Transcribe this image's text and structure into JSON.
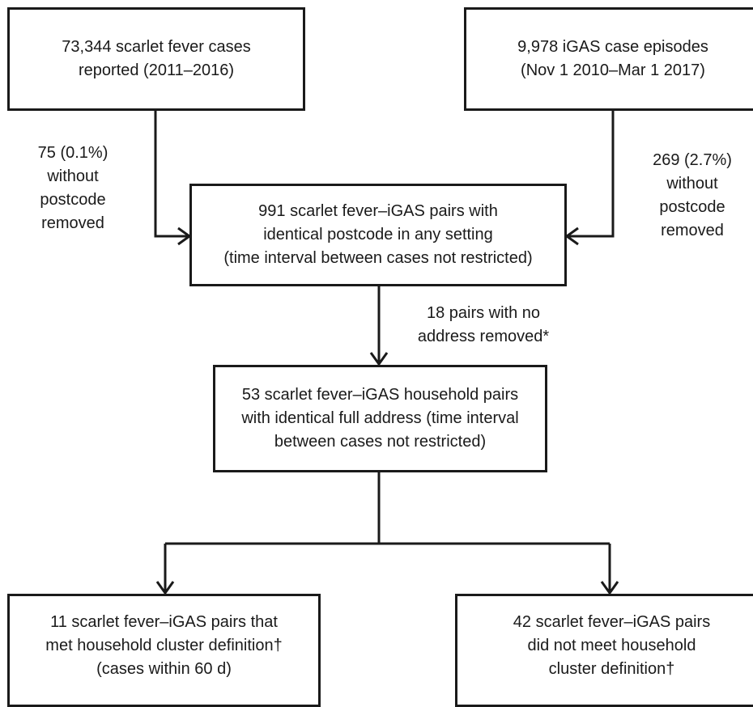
{
  "boxes": {
    "scarlet_fever": {
      "lines": [
        "73,344 scarlet fever cases",
        "reported (2011–2016)"
      ]
    },
    "igas": {
      "lines": [
        "9,978 iGAS  case episodes",
        "(Nov 1 2010–Mar 1 2017)"
      ]
    },
    "postcode_pairs": {
      "lines": [
        "991 scarlet fever–iGAS pairs with",
        "identical postcode in any setting",
        "(time interval between cases not restricted)"
      ]
    },
    "household_pairs": {
      "lines": [
        "53 scarlet fever–iGAS household pairs",
        "with identical full address (time interval",
        "between cases not restricted)"
      ]
    },
    "cluster_met": {
      "lines": [
        "11 scarlet fever–iGAS pairs that",
        "met household cluster definition†",
        "(cases within 60 d)"
      ]
    },
    "cluster_not_met": {
      "lines": [
        "42 scarlet fever–iGAS pairs",
        "did not meet household",
        "cluster definition†"
      ]
    }
  },
  "notes": {
    "scarlet_removed": {
      "lines": [
        "75 (0.1%)",
        "without",
        "postcode",
        "removed"
      ]
    },
    "igas_removed": {
      "lines": [
        "269 (2.7%)",
        "without",
        "postcode",
        "removed"
      ]
    },
    "no_address_removed": {
      "lines": [
        "18 pairs with no",
        "address removed*"
      ]
    }
  },
  "colors": {
    "stroke": "#1a1a1a",
    "background": "#ffffff"
  }
}
